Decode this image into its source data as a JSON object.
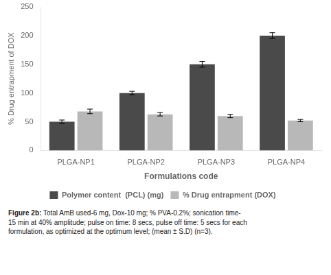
{
  "chart_data": {
    "type": "bar",
    "categories": [
      "PLGA-NP1",
      "PLGA-NP2",
      "PLGA-NP3",
      "PLGA-NP4"
    ],
    "series": [
      {
        "name": "Polymer content  (PCL) (mg)",
        "color": "#4a4a4a",
        "values": [
          50,
          100,
          150,
          200
        ],
        "errors": [
          3,
          3,
          5,
          5
        ]
      },
      {
        "name": "% Drug entrapment (DOX)",
        "color": "#b8b8b8",
        "values": [
          68,
          63,
          60,
          52
        ],
        "errors": [
          4,
          3,
          3,
          2
        ]
      }
    ],
    "xlabel": "Formulations code",
    "ylabel": "% Drug entrapment of DOX",
    "ylim": [
      0,
      250
    ],
    "yticks": [
      0,
      50,
      100,
      150,
      200,
      250
    ],
    "grid": false,
    "legend": "bottom",
    "annotations": [
      "Figure 2b:",
      " Total AmB used-6 mg, Dox-10 mg; % PVA-0.2%; sonication time-\n15 min at 40% amplitude; pulse on time: 8 secs, pulse off time: 5 secs for each\nformulation, as optimized at the optimum level; (mean ± S.D) (n=3)."
    ]
  }
}
